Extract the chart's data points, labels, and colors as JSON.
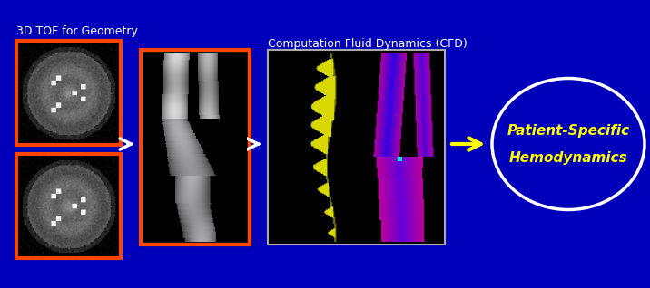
{
  "background_color": "#0000BB",
  "title_text": "3D TOF for Geometry",
  "title_fontsize": 9,
  "title_color": "white",
  "cfd_label": "Computation Fluid Dynamics (CFD)",
  "cfd_label_fontsize": 9,
  "cfd_label_color": "white",
  "result_text_line1": "Patient-Specific",
  "result_text_line2": "Hemodynamics",
  "result_text_color": "#FFFF00",
  "result_text_fontsize": 11,
  "mri_border_color": "#FF4400",
  "vessel_border_color": "#FF4400",
  "cfd_border_color": "#aaaaaa",
  "ellipse_color": "white",
  "white_arrow_color": "white",
  "yellow_arrow_color": "#FFFF00"
}
